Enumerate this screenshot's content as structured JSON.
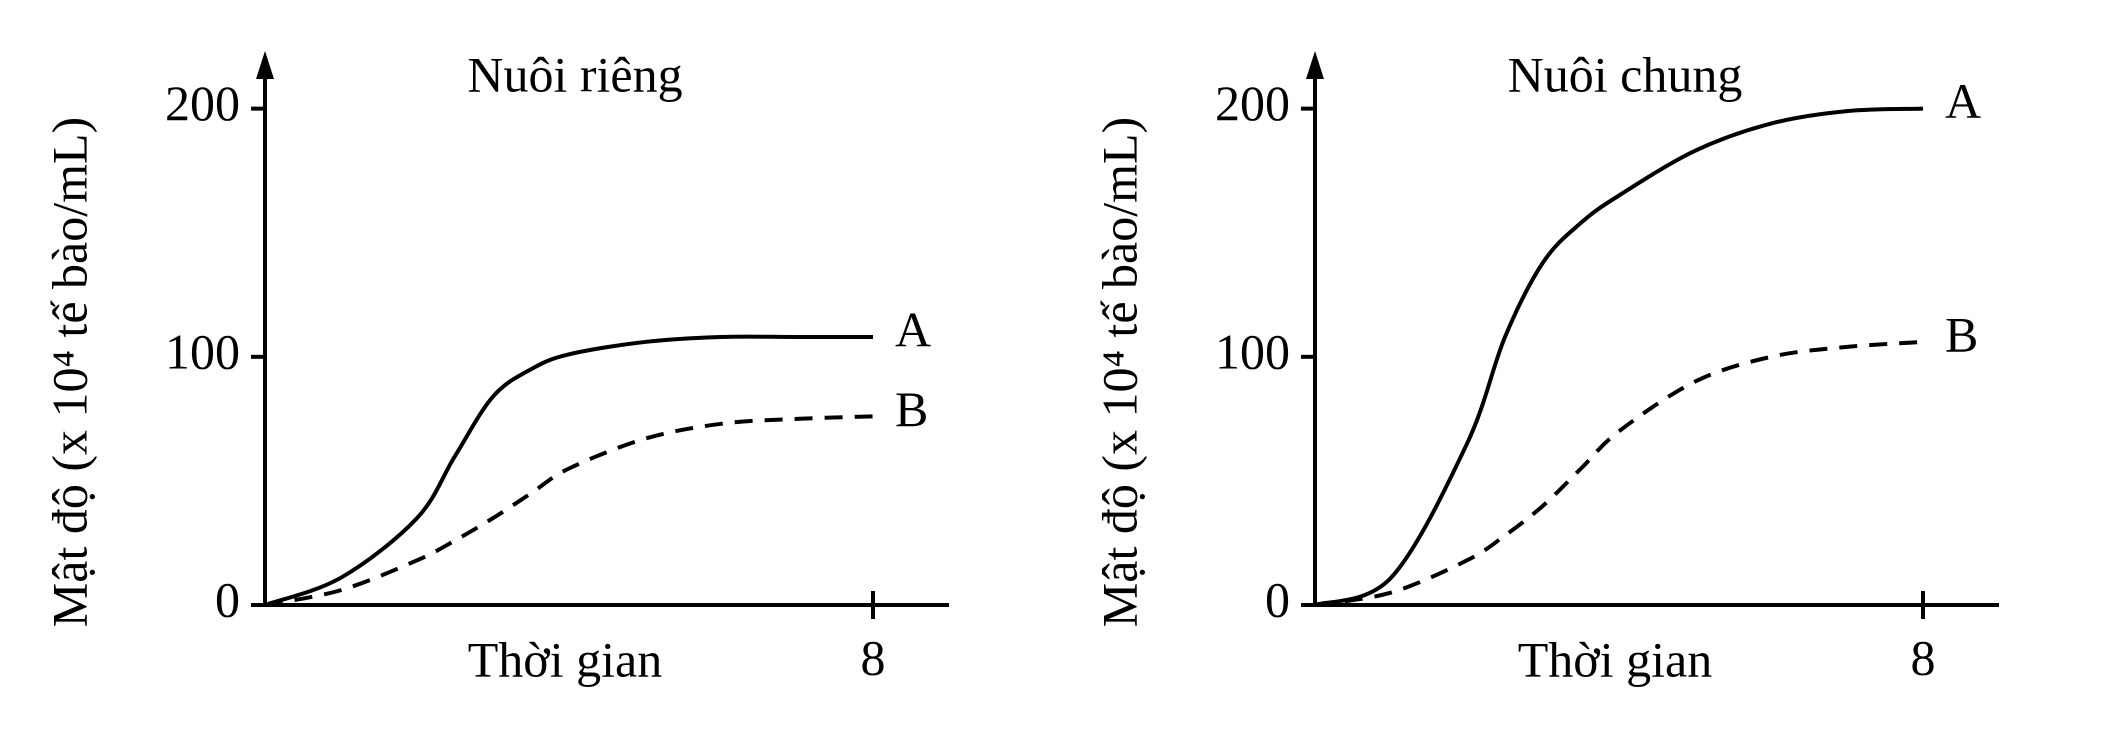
{
  "chart_data": [
    {
      "type": "line",
      "title": "Nuôi riêng",
      "xlabel": "Thời gian",
      "ylabel": "Mật độ (x 10⁴ tế bào/mL)",
      "x": [
        0,
        1,
        2,
        2.5,
        3,
        3.5,
        4,
        5,
        6,
        7,
        8
      ],
      "series": [
        {
          "name": "A",
          "color": "#000000",
          "dash": false,
          "values": [
            0,
            11,
            35,
            60,
            84,
            95,
            101,
            106,
            108,
            108,
            108
          ]
        },
        {
          "name": "B",
          "color": "#000000",
          "dash": true,
          "values": [
            0,
            6,
            18,
            26,
            35,
            45,
            55,
            67,
            73,
            75,
            76
          ]
        }
      ],
      "xlim": [
        0,
        9
      ],
      "xticks": [
        8
      ],
      "ylim": [
        0,
        220
      ],
      "yticks": [
        0,
        100,
        200
      ]
    },
    {
      "type": "line",
      "title": "Nuôi chung",
      "xlabel": "Thời gian",
      "ylabel": "Mật độ (x 10⁴ tế bào/mL)",
      "x": [
        0,
        1,
        2,
        2.5,
        3,
        3.5,
        4,
        5,
        6,
        7,
        8
      ],
      "series": [
        {
          "name": "A",
          "color": "#000000",
          "dash": false,
          "values": [
            0,
            11,
            65,
            108,
            138,
            154,
            165,
            183,
            194,
            199,
            200
          ]
        },
        {
          "name": "B",
          "color": "#000000",
          "dash": true,
          "values": [
            0,
            5,
            18,
            28,
            40,
            55,
            70,
            90,
            100,
            104,
            106
          ]
        }
      ],
      "xlim": [
        0,
        9
      ],
      "xticks": [
        8
      ],
      "ylim": [
        0,
        220
      ],
      "yticks": [
        0,
        100,
        200
      ]
    }
  ]
}
